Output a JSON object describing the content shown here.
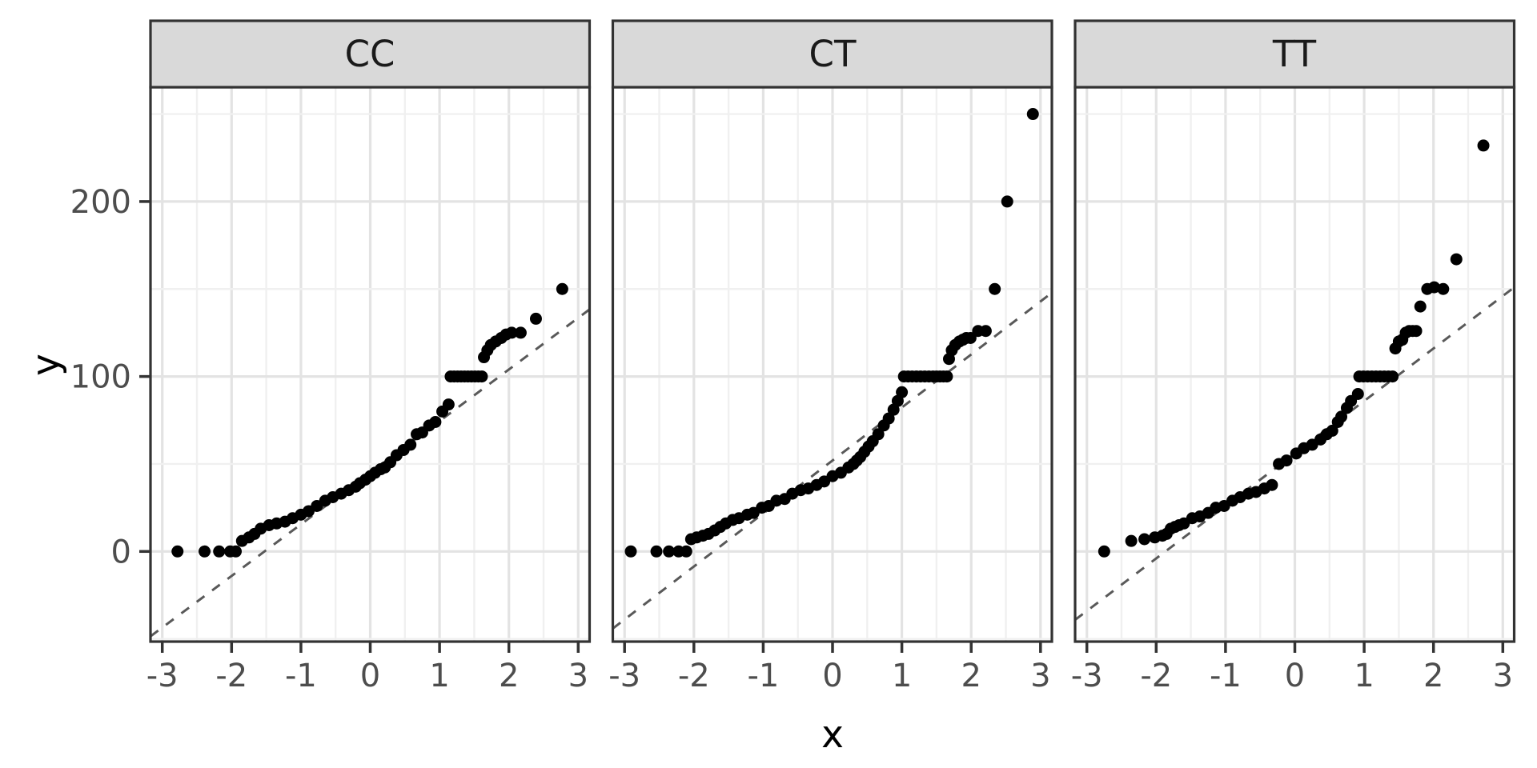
{
  "chart_data": {
    "type": "scatter",
    "title": "",
    "xlabel": "x",
    "ylabel": "y",
    "x_ticks": [
      -3,
      -2,
      -1,
      0,
      1,
      2,
      3
    ],
    "y_ticks": [
      0,
      100,
      200
    ],
    "y_minor_ticks": [
      -50,
      50,
      150,
      250
    ],
    "x_minor_step": 0.5,
    "xlim": [
      -3.16,
      3.17
    ],
    "ylim": [
      -51.5,
      265
    ],
    "grid": {
      "major": true,
      "minor": true
    },
    "legend": "none",
    "point_color": "#000000",
    "refline_style": "dashed",
    "refline_color": "#595959",
    "strip_fill": "#d9d9d9",
    "panel_border_color": "#333333",
    "grid_major_color": "#e3e3e3",
    "grid_minor_color": "#f0f0f0",
    "facets": [
      {
        "label": "CC",
        "refline": {
          "slope": 29.5,
          "intercept": 45
        },
        "points": [
          [
            -2.78,
            0
          ],
          [
            -2.39,
            0
          ],
          [
            -2.18,
            0
          ],
          [
            -2.02,
            0
          ],
          [
            -1.94,
            0
          ],
          [
            -1.85,
            6
          ],
          [
            -1.75,
            8
          ],
          [
            -1.67,
            10
          ],
          [
            -1.58,
            13
          ],
          [
            -1.46,
            15
          ],
          [
            -1.35,
            16
          ],
          [
            -1.23,
            17
          ],
          [
            -1.12,
            19
          ],
          [
            -1.0,
            21
          ],
          [
            -0.89,
            23
          ],
          [
            -0.77,
            26
          ],
          [
            -0.65,
            29
          ],
          [
            -0.54,
            31
          ],
          [
            -0.42,
            33
          ],
          [
            -0.31,
            35
          ],
          [
            -0.21,
            37
          ],
          [
            -0.15,
            39
          ],
          [
            -0.07,
            41
          ],
          [
            0.0,
            43
          ],
          [
            0.07,
            45
          ],
          [
            0.15,
            47
          ],
          [
            0.21,
            48
          ],
          [
            0.29,
            51
          ],
          [
            0.38,
            55
          ],
          [
            0.48,
            58
          ],
          [
            0.58,
            61
          ],
          [
            0.67,
            67
          ],
          [
            0.75,
            68
          ],
          [
            0.85,
            72
          ],
          [
            0.94,
            74
          ],
          [
            1.04,
            80
          ],
          [
            1.13,
            84
          ],
          [
            1.16,
            100
          ],
          [
            1.21,
            100
          ],
          [
            1.26,
            100
          ],
          [
            1.31,
            100
          ],
          [
            1.36,
            100
          ],
          [
            1.41,
            100
          ],
          [
            1.46,
            100
          ],
          [
            1.51,
            100
          ],
          [
            1.56,
            100
          ],
          [
            1.61,
            100
          ],
          [
            1.64,
            111
          ],
          [
            1.69,
            115
          ],
          [
            1.74,
            118
          ],
          [
            1.81,
            120
          ],
          [
            1.89,
            122
          ],
          [
            1.96,
            124
          ],
          [
            2.04,
            125
          ],
          [
            2.17,
            125
          ],
          [
            2.39,
            133
          ],
          [
            2.77,
            150
          ]
        ]
      },
      {
        "label": "CT",
        "refline": {
          "slope": 30.3,
          "intercept": 52
        },
        "points": [
          [
            -2.91,
            0
          ],
          [
            -2.54,
            0
          ],
          [
            -2.36,
            0
          ],
          [
            -2.22,
            0
          ],
          [
            -2.11,
            0
          ],
          [
            -2.04,
            7
          ],
          [
            -1.96,
            8
          ],
          [
            -1.87,
            9
          ],
          [
            -1.79,
            10
          ],
          [
            -1.7,
            12
          ],
          [
            -1.62,
            14
          ],
          [
            -1.54,
            16
          ],
          [
            -1.44,
            18
          ],
          [
            -1.35,
            19
          ],
          [
            -1.23,
            21
          ],
          [
            -1.14,
            22
          ],
          [
            -1.02,
            25
          ],
          [
            -0.92,
            26
          ],
          [
            -0.81,
            29
          ],
          [
            -0.69,
            30
          ],
          [
            -0.58,
            33
          ],
          [
            -0.46,
            35
          ],
          [
            -0.35,
            36
          ],
          [
            -0.23,
            38
          ],
          [
            -0.12,
            40
          ],
          [
            0.0,
            43
          ],
          [
            0.12,
            45
          ],
          [
            0.23,
            48
          ],
          [
            0.3,
            50
          ],
          [
            0.35,
            52
          ],
          [
            0.4,
            54
          ],
          [
            0.46,
            57
          ],
          [
            0.52,
            60
          ],
          [
            0.58,
            63
          ],
          [
            0.66,
            67
          ],
          [
            0.74,
            72
          ],
          [
            0.81,
            76
          ],
          [
            0.88,
            81
          ],
          [
            0.94,
            86
          ],
          [
            1.0,
            91
          ],
          [
            1.03,
            100
          ],
          [
            1.09,
            100
          ],
          [
            1.15,
            100
          ],
          [
            1.21,
            100
          ],
          [
            1.27,
            100
          ],
          [
            1.33,
            100
          ],
          [
            1.39,
            100
          ],
          [
            1.45,
            100
          ],
          [
            1.5,
            100
          ],
          [
            1.55,
            100
          ],
          [
            1.6,
            100
          ],
          [
            1.65,
            100
          ],
          [
            1.68,
            110
          ],
          [
            1.72,
            115
          ],
          [
            1.77,
            118
          ],
          [
            1.83,
            120
          ],
          [
            1.88,
            121
          ],
          [
            1.93,
            122
          ],
          [
            1.99,
            122
          ],
          [
            2.1,
            126
          ],
          [
            2.21,
            126
          ],
          [
            2.34,
            150
          ],
          [
            2.52,
            200
          ],
          [
            2.89,
            250
          ]
        ]
      },
      {
        "label": "TT",
        "refline": {
          "slope": 30,
          "intercept": 56
        },
        "points": [
          [
            -2.75,
            0
          ],
          [
            -2.36,
            6
          ],
          [
            -2.17,
            7
          ],
          [
            -2.02,
            8
          ],
          [
            -1.91,
            9
          ],
          [
            -1.85,
            10
          ],
          [
            -1.79,
            13
          ],
          [
            -1.73,
            14
          ],
          [
            -1.67,
            15
          ],
          [
            -1.6,
            16
          ],
          [
            -1.48,
            19
          ],
          [
            -1.37,
            20
          ],
          [
            -1.25,
            22
          ],
          [
            -1.14,
            25
          ],
          [
            -1.02,
            26
          ],
          [
            -0.9,
            29
          ],
          [
            -0.79,
            31
          ],
          [
            -0.67,
            33
          ],
          [
            -0.56,
            34
          ],
          [
            -0.44,
            36
          ],
          [
            -0.33,
            38
          ],
          [
            -0.23,
            50
          ],
          [
            -0.12,
            52
          ],
          [
            0.02,
            56
          ],
          [
            0.13,
            59
          ],
          [
            0.25,
            61
          ],
          [
            0.37,
            64
          ],
          [
            0.46,
            67
          ],
          [
            0.54,
            69
          ],
          [
            0.62,
            74
          ],
          [
            0.67,
            77
          ],
          [
            0.75,
            82
          ],
          [
            0.81,
            86
          ],
          [
            0.91,
            90
          ],
          [
            0.93,
            100
          ],
          [
            0.99,
            100
          ],
          [
            1.05,
            100
          ],
          [
            1.11,
            100
          ],
          [
            1.17,
            100
          ],
          [
            1.23,
            100
          ],
          [
            1.29,
            100
          ],
          [
            1.35,
            100
          ],
          [
            1.41,
            100
          ],
          [
            1.45,
            116
          ],
          [
            1.5,
            120
          ],
          [
            1.55,
            121
          ],
          [
            1.6,
            125
          ],
          [
            1.65,
            126
          ],
          [
            1.7,
            126
          ],
          [
            1.75,
            126
          ],
          [
            1.81,
            140
          ],
          [
            1.91,
            150
          ],
          [
            2.01,
            151
          ],
          [
            2.14,
            150
          ],
          [
            2.33,
            167
          ],
          [
            2.72,
            232
          ]
        ]
      }
    ]
  }
}
